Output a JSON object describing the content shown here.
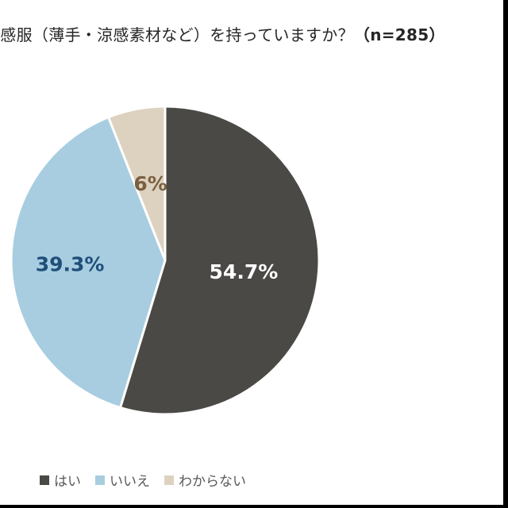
{
  "chart_data": {
    "type": "pie",
    "title": "涼感服（薄手・涼感素材など）を持っていますか？",
    "title_suffix": "（n=285）",
    "categories": [
      "はい",
      "いいえ",
      "わからない"
    ],
    "values": [
      54.7,
      39.3,
      6
    ],
    "value_labels": [
      "54.7%",
      "39.3%",
      "6%"
    ],
    "colors": [
      "#4a4946",
      "#a8cde0",
      "#ddd2c0"
    ],
    "label_colors": [
      "#ffffff",
      "#1f4e79",
      "#7a6040"
    ],
    "start_angle_deg": 0,
    "direction": "clockwise",
    "legend_position": "bottom-left"
  }
}
